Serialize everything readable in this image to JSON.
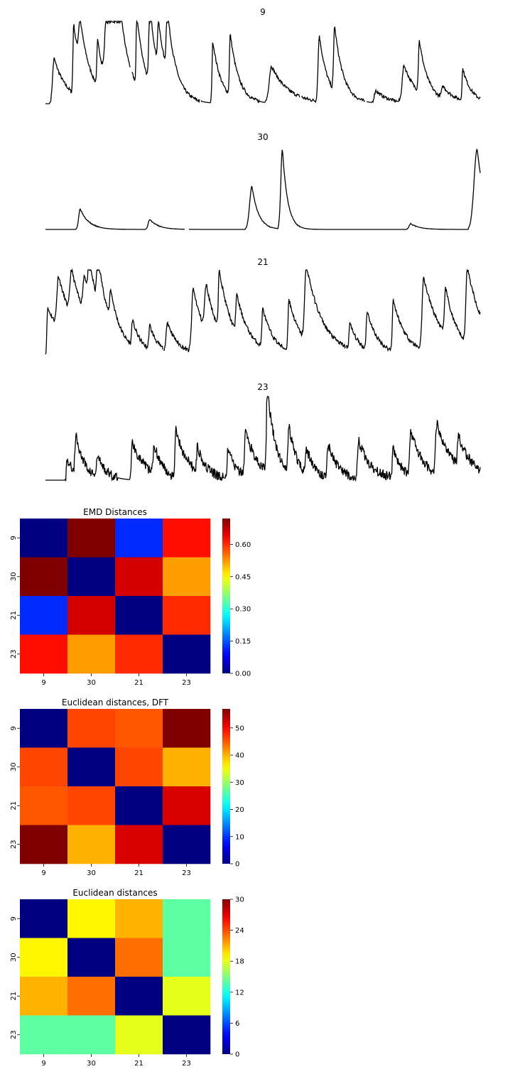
{
  "chart_data": [
    {
      "type": "line",
      "title": "9",
      "axes_visible": false,
      "color": "#000000",
      "series_shape": "many sharp spikes with exponential decay"
    },
    {
      "type": "line",
      "title": "30",
      "axes_visible": false,
      "color": "#000000",
      "series_shape": "mostly flat baseline with a few isolated peaks"
    },
    {
      "type": "line",
      "title": "21",
      "axes_visible": false,
      "color": "#000000",
      "series_shape": "dense noisy spikes with decay"
    },
    {
      "type": "line",
      "title": "23",
      "axes_visible": false,
      "color": "#000000",
      "series_shape": "noisy oscillating activity"
    },
    {
      "type": "heatmap",
      "title": "EMD Distances",
      "colormap": "jet",
      "x_categories": [
        "9",
        "30",
        "21",
        "23"
      ],
      "y_categories": [
        "9",
        "30",
        "21",
        "23"
      ],
      "values": [
        [
          0.0,
          0.72,
          0.12,
          0.62
        ],
        [
          0.72,
          0.0,
          0.66,
          0.52
        ],
        [
          0.12,
          0.66,
          0.0,
          0.6
        ],
        [
          0.62,
          0.52,
          0.6,
          0.0
        ]
      ],
      "vmin": 0.0,
      "vmax": 0.72,
      "colorbar_ticks": [
        "0.00",
        "0.15",
        "0.30",
        "0.45",
        "0.60"
      ]
    },
    {
      "type": "heatmap",
      "title": "Euclidean distances, DFT",
      "colormap": "jet",
      "x_categories": [
        "9",
        "30",
        "21",
        "23"
      ],
      "y_categories": [
        "9",
        "30",
        "21",
        "23"
      ],
      "values": [
        [
          0,
          46,
          45,
          57
        ],
        [
          46,
          0,
          46,
          40
        ],
        [
          45,
          46,
          0,
          52
        ],
        [
          57,
          40,
          52,
          0
        ]
      ],
      "vmin": 0,
      "vmax": 57,
      "colorbar_ticks": [
        "0",
        "10",
        "20",
        "30",
        "40",
        "50"
      ]
    },
    {
      "type": "heatmap",
      "title": "Euclidean distances",
      "colormap": "jet",
      "x_categories": [
        "9",
        "30",
        "21",
        "23"
      ],
      "y_categories": [
        "9",
        "30",
        "21",
        "23"
      ],
      "values": [
        [
          0,
          19,
          21,
          14
        ],
        [
          19,
          0,
          23,
          14
        ],
        [
          21,
          23,
          0,
          18
        ],
        [
          14,
          14,
          18,
          0
        ]
      ],
      "vmin": 0,
      "vmax": 30,
      "colorbar_ticks": [
        "0",
        "6",
        "12",
        "18",
        "24",
        "30"
      ]
    }
  ]
}
